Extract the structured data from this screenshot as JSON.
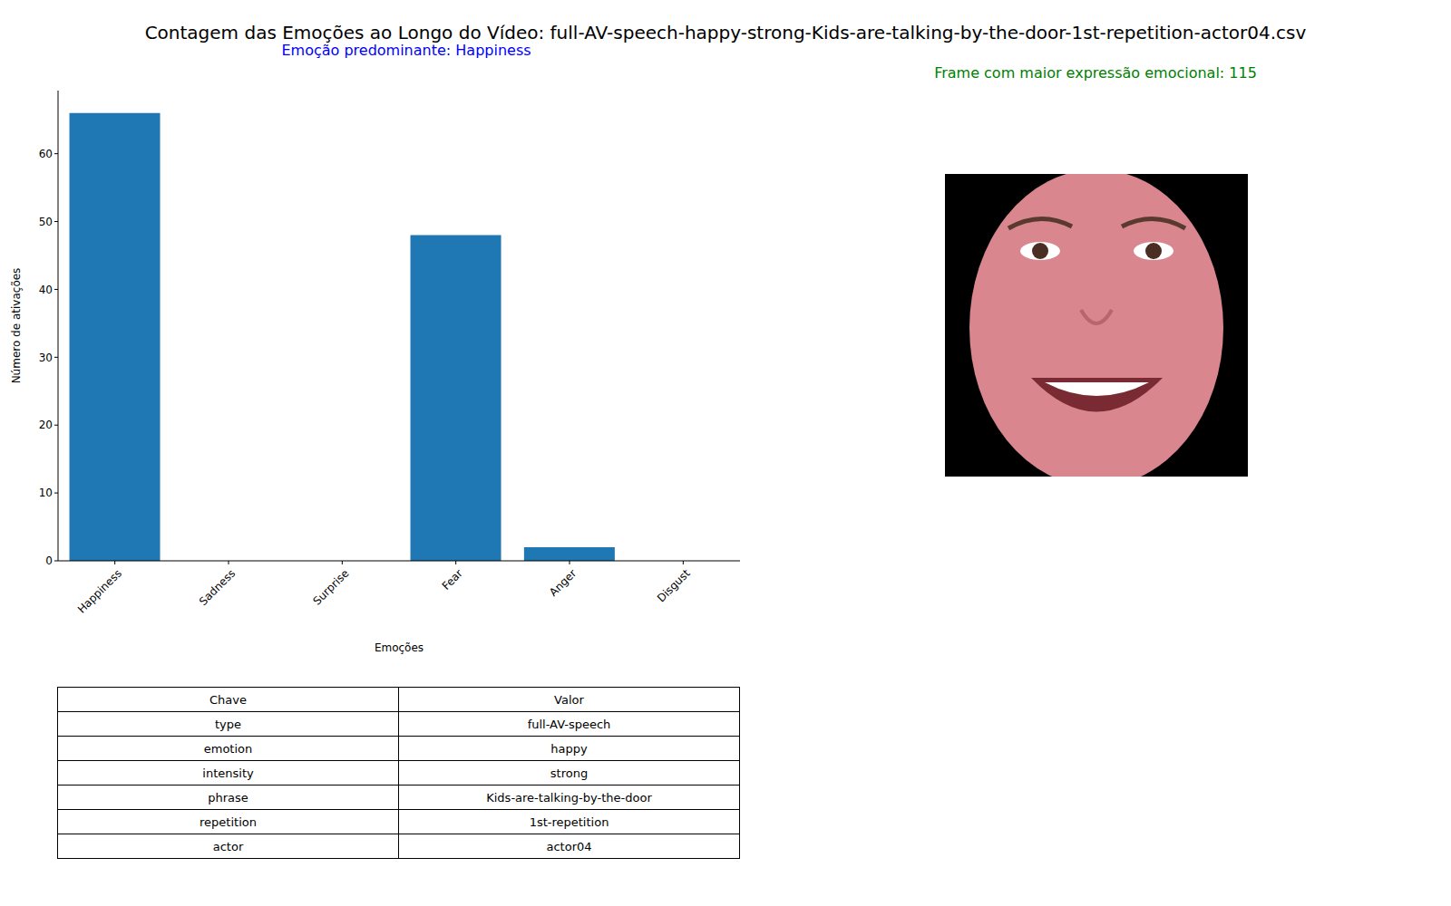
{
  "chart_data": {
    "type": "bar",
    "title": "Contagem das Emoções ao Longo do Vídeo: full-AV-speech-happy-strong-Kids-are-talking-by-the-door-1st-repetition-actor04.csv",
    "subtitle": "Emoção predominante: Happiness",
    "annotations": [
      "Frame com maior expressão emocional: 115"
    ],
    "x_label": "Emoções",
    "y_label": "Número de ativações",
    "categories": [
      "Happiness",
      "Sadness",
      "Surprise",
      "Fear",
      "Anger",
      "Disgust"
    ],
    "values": [
      66,
      0,
      0,
      48,
      2,
      0
    ],
    "color": "#1f77b4",
    "ylim": [
      0,
      69.3
    ],
    "yticks": [
      0,
      10,
      20,
      30,
      40,
      50,
      60
    ],
    "grid": false
  },
  "table": {
    "columns": [
      "Chave",
      "Valor"
    ],
    "rows": [
      [
        "type",
        "full-AV-speech"
      ],
      [
        "emotion",
        "happy"
      ],
      [
        "intensity",
        "strong"
      ],
      [
        "phrase",
        "Kids-are-talking-by-the-door"
      ],
      [
        "repetition",
        "1st-repetition"
      ],
      [
        "actor",
        "actor04"
      ]
    ]
  }
}
